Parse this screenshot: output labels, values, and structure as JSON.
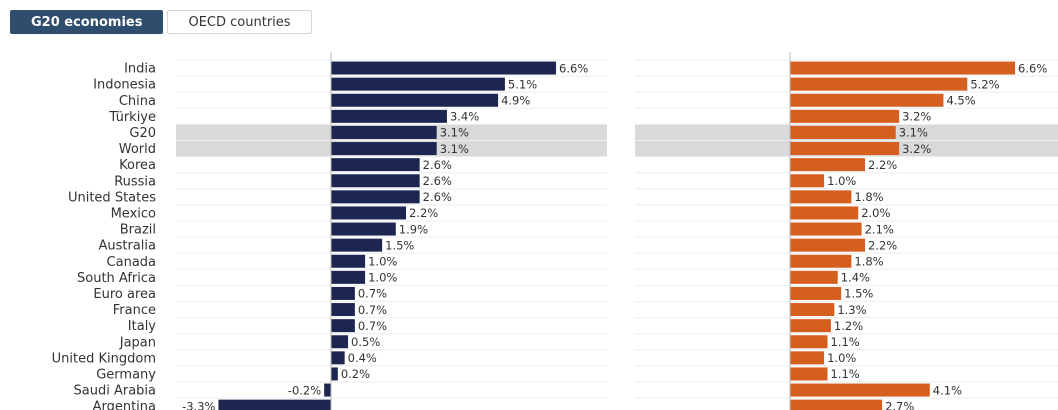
{
  "tabs": [
    {
      "label": "G20 economies",
      "active": true
    },
    {
      "label": "OECD countries",
      "active": false
    }
  ],
  "colors": {
    "left_series": "#1c2651",
    "right_series": "#d55f1e",
    "highlight_band": "#d9d9d9",
    "tab_active": "#2f4e6e"
  },
  "chart_data": {
    "type": "bar",
    "orientation": "horizontal",
    "categories": [
      "India",
      "Indonesia",
      "China",
      "Türkiye",
      "G20",
      "World",
      "Korea",
      "Russia",
      "United States",
      "Mexico",
      "Brazil",
      "Australia",
      "Canada",
      "South Africa",
      "Euro area",
      "France",
      "Italy",
      "Japan",
      "United Kingdom",
      "Germany",
      "Saudi Arabia",
      "Argentina"
    ],
    "highlighted": [
      "G20",
      "World"
    ],
    "panels": [
      {
        "values": [
          6.6,
          5.1,
          4.9,
          3.4,
          3.1,
          3.1,
          2.6,
          2.6,
          2.6,
          2.2,
          1.9,
          1.5,
          1.0,
          1.0,
          0.7,
          0.7,
          0.7,
          0.5,
          0.4,
          0.2,
          -0.2,
          -3.3
        ],
        "labels": [
          "6.6%",
          "5.1%",
          "4.9%",
          "3.4%",
          "3.1%",
          "3.1%",
          "2.6%",
          "2.6%",
          "2.6%",
          "2.2%",
          "1.9%",
          "1.5%",
          "1.0%",
          "1.0%",
          "0.7%",
          "0.7%",
          "0.7%",
          "0.5%",
          "0.4%",
          "0.2%",
          "-0.2%",
          "-3.3%"
        ]
      },
      {
        "values": [
          6.6,
          5.2,
          4.5,
          3.2,
          3.1,
          3.2,
          2.2,
          1.0,
          1.8,
          2.0,
          2.1,
          2.2,
          1.8,
          1.4,
          1.5,
          1.3,
          1.2,
          1.1,
          1.0,
          1.1,
          4.1,
          2.7
        ],
        "labels": [
          "6.6%",
          "5.2%",
          "4.5%",
          "3.2%",
          "3.1%",
          "3.2%",
          "2.2%",
          "1.0%",
          "1.8%",
          "2.0%",
          "2.1%",
          "2.2%",
          "1.8%",
          "1.4%",
          "1.5%",
          "1.3%",
          "1.2%",
          "1.1%",
          "1.0%",
          "1.1%",
          "4.1%",
          "2.7%"
        ]
      }
    ]
  }
}
